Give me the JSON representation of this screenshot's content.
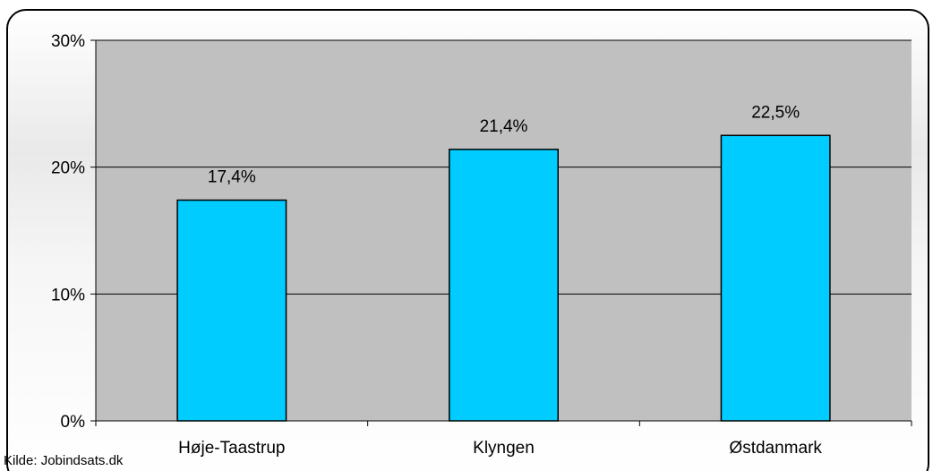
{
  "chart_data": {
    "type": "bar",
    "categories": [
      "Høje-Taastrup",
      "Klyngen",
      "Østdanmark"
    ],
    "values": [
      17.4,
      21.4,
      22.5
    ],
    "data_labels": [
      "17,4%",
      "21,4%",
      "22,5%"
    ],
    "title": "",
    "xlabel": "",
    "ylabel": "",
    "ylim": [
      0,
      30
    ],
    "y_ticks": [
      0,
      10,
      20,
      30
    ],
    "y_tick_labels": [
      "0%",
      "10%",
      "20%",
      "30%"
    ],
    "grid": true,
    "legend": "none",
    "colors": {
      "bar": "#00ccff",
      "plot_background": "#c0c0c0",
      "gridline": "#000000"
    }
  },
  "source_text": "Kilde: Jobindsats.dk"
}
